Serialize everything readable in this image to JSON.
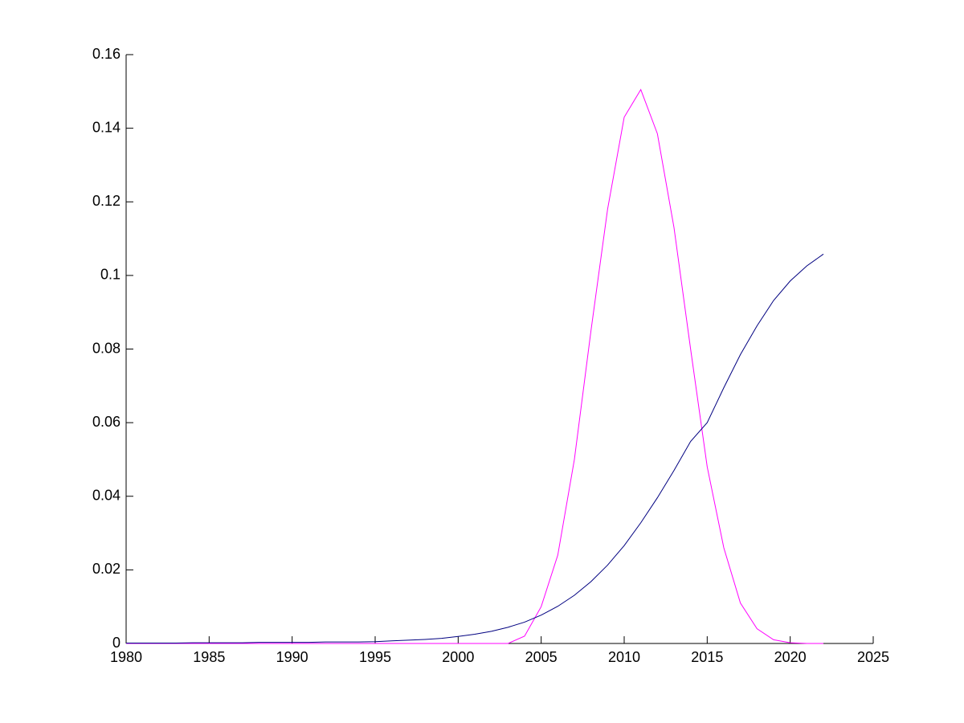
{
  "chart_data": {
    "type": "line",
    "x": [
      1980,
      1981,
      1982,
      1983,
      1984,
      1985,
      1986,
      1987,
      1988,
      1989,
      1990,
      1991,
      1992,
      1993,
      1994,
      1995,
      1996,
      1997,
      1998,
      1999,
      2000,
      2001,
      2002,
      2003,
      2004,
      2005,
      2006,
      2007,
      2008,
      2009,
      2010,
      2011,
      2012,
      2013,
      2014,
      2015,
      2016,
      2017,
      2018,
      2019,
      2020,
      2021,
      2022
    ],
    "series": [
      {
        "color": "#ff00ff",
        "values": [
          0,
          0,
          0,
          0,
          0,
          0,
          0,
          0,
          0,
          0,
          0,
          0,
          0,
          0,
          0,
          0,
          0,
          0,
          0,
          0,
          0,
          0,
          0,
          0,
          0.002,
          0.01,
          0.024,
          0.05,
          0.085,
          0.118,
          0.143,
          0.1505,
          0.1385,
          0.113,
          0.08,
          0.048,
          0.026,
          0.011,
          0.004,
          0.001,
          0.0002,
          0,
          0
        ]
      },
      {
        "color": "#000080",
        "values": [
          0.0001,
          0.0001,
          0.0001,
          0.0001,
          0.0002,
          0.0002,
          0.0002,
          0.0002,
          0.0003,
          0.0003,
          0.0003,
          0.0003,
          0.0004,
          0.0004,
          0.0004,
          0.0005,
          0.0007,
          0.0009,
          0.0011,
          0.0014,
          0.0019,
          0.0025,
          0.0033,
          0.0044,
          0.0058,
          0.0077,
          0.0101,
          0.0131,
          0.0168,
          0.0213,
          0.0266,
          0.0328,
          0.0396,
          0.047,
          0.0549,
          0.06,
          0.0695,
          0.0785,
          0.0863,
          0.0932,
          0.0985,
          0.1026,
          0.1058
        ]
      }
    ],
    "xlim": [
      1980,
      2025
    ],
    "xticks": [
      1980,
      1985,
      1990,
      1995,
      2000,
      2005,
      2010,
      2015,
      2020,
      2025
    ],
    "ylim": [
      0,
      0.16
    ],
    "yticks": [
      0,
      0.02,
      0.04,
      0.06,
      0.08,
      0.1,
      0.12,
      0.14,
      0.16
    ]
  }
}
